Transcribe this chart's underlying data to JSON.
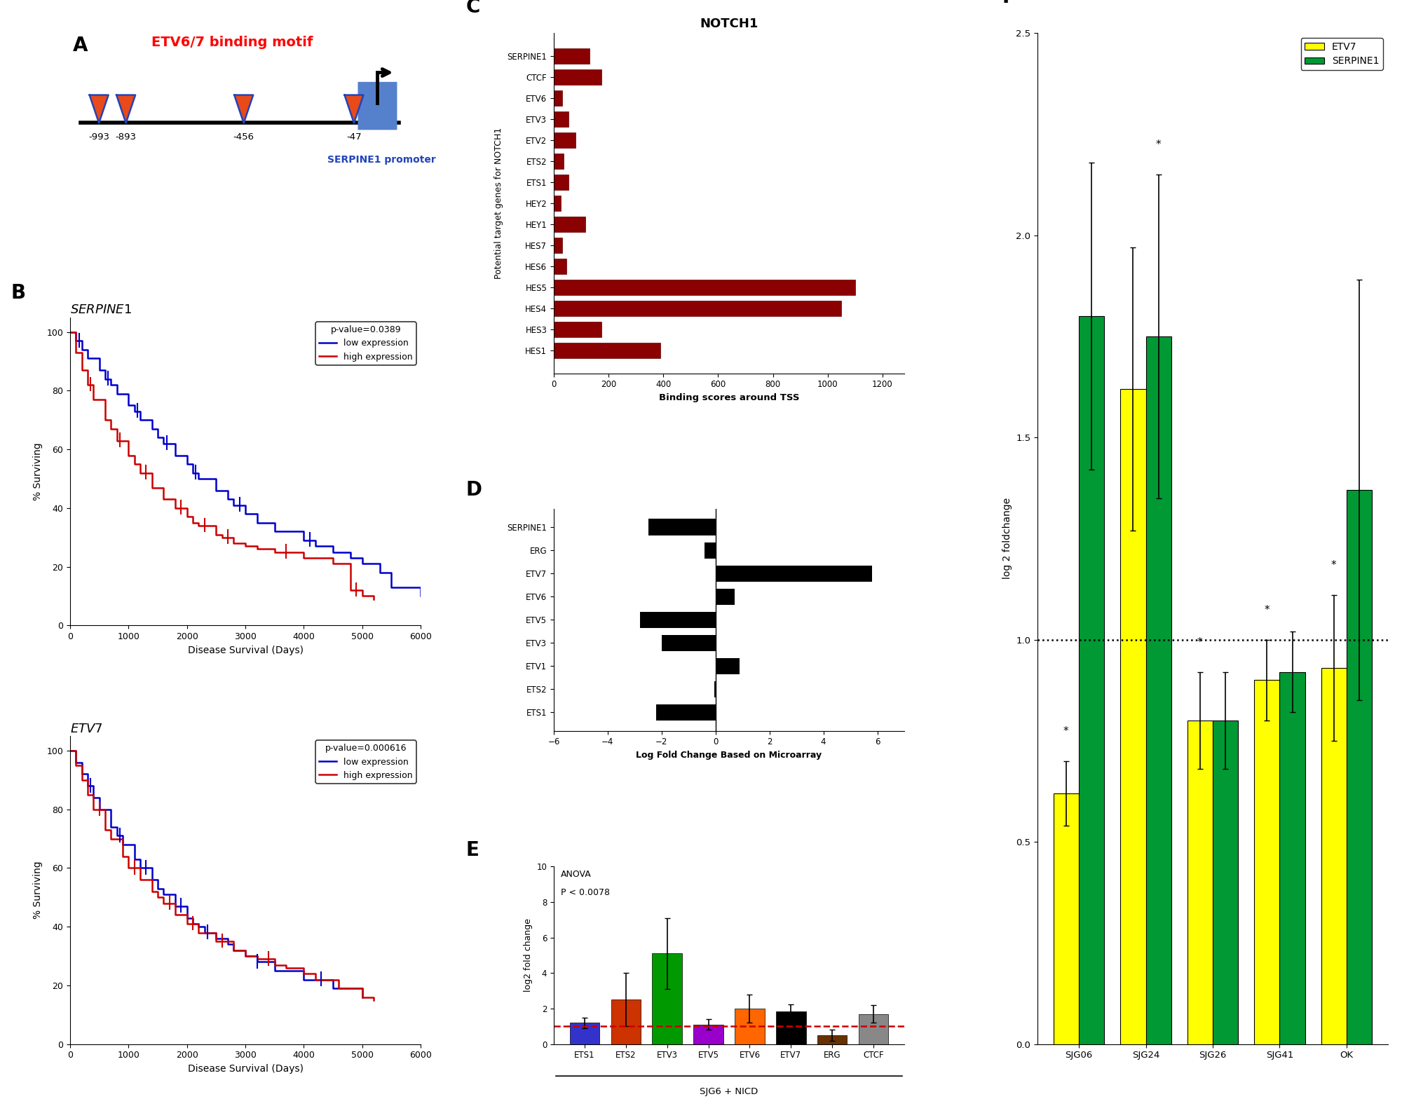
{
  "panel_A": {
    "positions": [
      -993,
      -893,
      -456,
      -47
    ],
    "labels": [
      "-993",
      "-893",
      "-456",
      "-47"
    ],
    "title": "ETV6/7 binding motif",
    "promoter_label": "SERPINE1 promoter"
  },
  "panel_B_serpine1": {
    "title": "SERPINE1",
    "xlabel": "Disease Survival (Days)",
    "ylabel": "% Surviving",
    "pvalue": "p-value=0.0389",
    "legend_low": "low expression",
    "legend_high": "high expression",
    "color_low": "#0000cc",
    "color_high": "#cc0000",
    "t_low": [
      0,
      100,
      200,
      300,
      500,
      600,
      700,
      800,
      1000,
      1100,
      1200,
      1400,
      1500,
      1600,
      1800,
      2000,
      2100,
      2200,
      2500,
      2700,
      2800,
      3000,
      3200,
      3500,
      4000,
      4200,
      4500,
      4800,
      5000,
      5300,
      5500,
      6000
    ],
    "s_low": [
      100,
      97,
      94,
      91,
      87,
      84,
      82,
      79,
      75,
      73,
      70,
      67,
      64,
      62,
      58,
      55,
      52,
      50,
      46,
      43,
      41,
      38,
      35,
      32,
      29,
      27,
      25,
      23,
      21,
      18,
      13,
      10
    ],
    "t_high": [
      0,
      100,
      200,
      300,
      400,
      600,
      700,
      800,
      1000,
      1100,
      1200,
      1400,
      1600,
      1800,
      2000,
      2100,
      2200,
      2500,
      2600,
      2800,
      3000,
      3200,
      3500,
      4000,
      4500,
      4800,
      5000,
      5200
    ],
    "s_high": [
      100,
      93,
      87,
      82,
      77,
      70,
      67,
      63,
      58,
      55,
      52,
      47,
      43,
      40,
      37,
      35,
      34,
      31,
      30,
      28,
      27,
      26,
      25,
      23,
      21,
      12,
      10,
      9
    ],
    "censor_low_t": [
      150,
      650,
      1150,
      1650,
      2150,
      2900,
      4100
    ],
    "censor_high_t": [
      350,
      850,
      1300,
      1900,
      2300,
      2700,
      3700,
      4900
    ]
  },
  "panel_B_etv7": {
    "title": "ETV7",
    "xlabel": "Disease Survival (Days)",
    "ylabel": "% Surviving",
    "pvalue": "p-value=0.000616",
    "legend_low": "low expression",
    "legend_high": "high expression",
    "color_low": "#0000cc",
    "color_high": "#cc0000",
    "t_low": [
      0,
      100,
      200,
      300,
      400,
      500,
      700,
      800,
      900,
      1100,
      1200,
      1400,
      1500,
      1600,
      1800,
      2000,
      2100,
      2200,
      2300,
      2500,
      2700,
      2800,
      3000,
      3200,
      3500,
      4000,
      4500,
      5000
    ],
    "s_low": [
      100,
      96,
      92,
      88,
      84,
      80,
      74,
      71,
      68,
      63,
      60,
      56,
      53,
      51,
      47,
      43,
      41,
      40,
      38,
      36,
      34,
      32,
      30,
      28,
      25,
      22,
      19,
      16
    ],
    "t_high": [
      0,
      100,
      200,
      300,
      400,
      600,
      700,
      900,
      1000,
      1200,
      1400,
      1500,
      1600,
      1800,
      2000,
      2200,
      2500,
      2800,
      3000,
      3200,
      3500,
      3700,
      4000,
      4200,
      4600,
      5000,
      5200
    ],
    "s_high": [
      100,
      95,
      90,
      85,
      80,
      73,
      70,
      64,
      60,
      56,
      52,
      50,
      48,
      44,
      41,
      38,
      35,
      32,
      30,
      29,
      27,
      26,
      24,
      22,
      19,
      16,
      15
    ],
    "censor_low_t": [
      350,
      850,
      1300,
      1900,
      2350,
      3200,
      4300
    ],
    "censor_high_t": [
      500,
      1100,
      1700,
      2100,
      2600,
      3400
    ]
  },
  "panel_C": {
    "title": "NOTCH1",
    "xlabel": "Binding scores around TSS",
    "ylabel": "Potential target genes for NOTCH1",
    "categories": [
      "SERPINE1",
      "CTCF",
      "ETV6",
      "ETV3",
      "ETV2",
      "ETS2",
      "ETS1",
      "HEY2",
      "HEY1",
      "HES7",
      "HES6",
      "HES5",
      "HES4",
      "HES3",
      "HES1"
    ],
    "values": [
      130,
      175,
      30,
      55,
      80,
      35,
      55,
      25,
      115,
      30,
      45,
      1100,
      1050,
      175,
      390
    ],
    "bar_color": "#8b0000"
  },
  "panel_D": {
    "xlabel": "Log Fold Change Based on Microarray",
    "categories": [
      "SERPINE1",
      "ERG",
      "ETV7",
      "ETV6",
      "ETV5",
      "ETV3",
      "ETV1",
      "ETS2",
      "ETS1"
    ],
    "values": [
      -2.5,
      -0.4,
      5.8,
      0.7,
      -2.8,
      -2.0,
      0.9,
      -0.05,
      -2.2
    ],
    "bar_color": "#000000"
  },
  "panel_E": {
    "title_anova": "ANOVA",
    "title_pval": "P < 0.0078",
    "xlabel": "SJG6 + NICD",
    "ylabel": "log2 fold change",
    "categories": [
      "ETS1",
      "ETS2",
      "ETV3",
      "ETV5",
      "ETV6",
      "ETV7",
      "ERG",
      "CTCF"
    ],
    "values": [
      1.2,
      2.5,
      5.1,
      1.1,
      2.0,
      1.85,
      0.5,
      1.7
    ],
    "errors": [
      0.3,
      1.5,
      2.0,
      0.3,
      0.8,
      0.4,
      0.3,
      0.5
    ],
    "bar_colors": [
      "#3333cc",
      "#cc3300",
      "#009900",
      "#9900cc",
      "#ff6600",
      "#000000",
      "#663300",
      "#888888"
    ],
    "dashed_line": 1.0,
    "dashed_color": "#cc0000"
  },
  "panel_F": {
    "ylabel": "log 2 foldchange",
    "categories": [
      "SJG06",
      "SJG24",
      "SJG26",
      "SJG41",
      "OK"
    ],
    "etv7_values": [
      0.62,
      1.62,
      0.8,
      0.9,
      0.93
    ],
    "serpine1_values": [
      1.8,
      1.75,
      0.8,
      0.92,
      1.37
    ],
    "etv7_errors": [
      0.08,
      0.35,
      0.12,
      0.1,
      0.18
    ],
    "serpine1_errors": [
      0.38,
      0.4,
      0.12,
      0.1,
      0.52
    ],
    "etv7_color": "#ffff00",
    "serpine1_color": "#009933",
    "dashed_line": 1.0,
    "ylim": [
      0.0,
      2.5
    ],
    "stars_etv7": [
      true,
      false,
      true,
      true,
      true
    ],
    "stars_serpine1": [
      false,
      true,
      false,
      false,
      false
    ]
  }
}
